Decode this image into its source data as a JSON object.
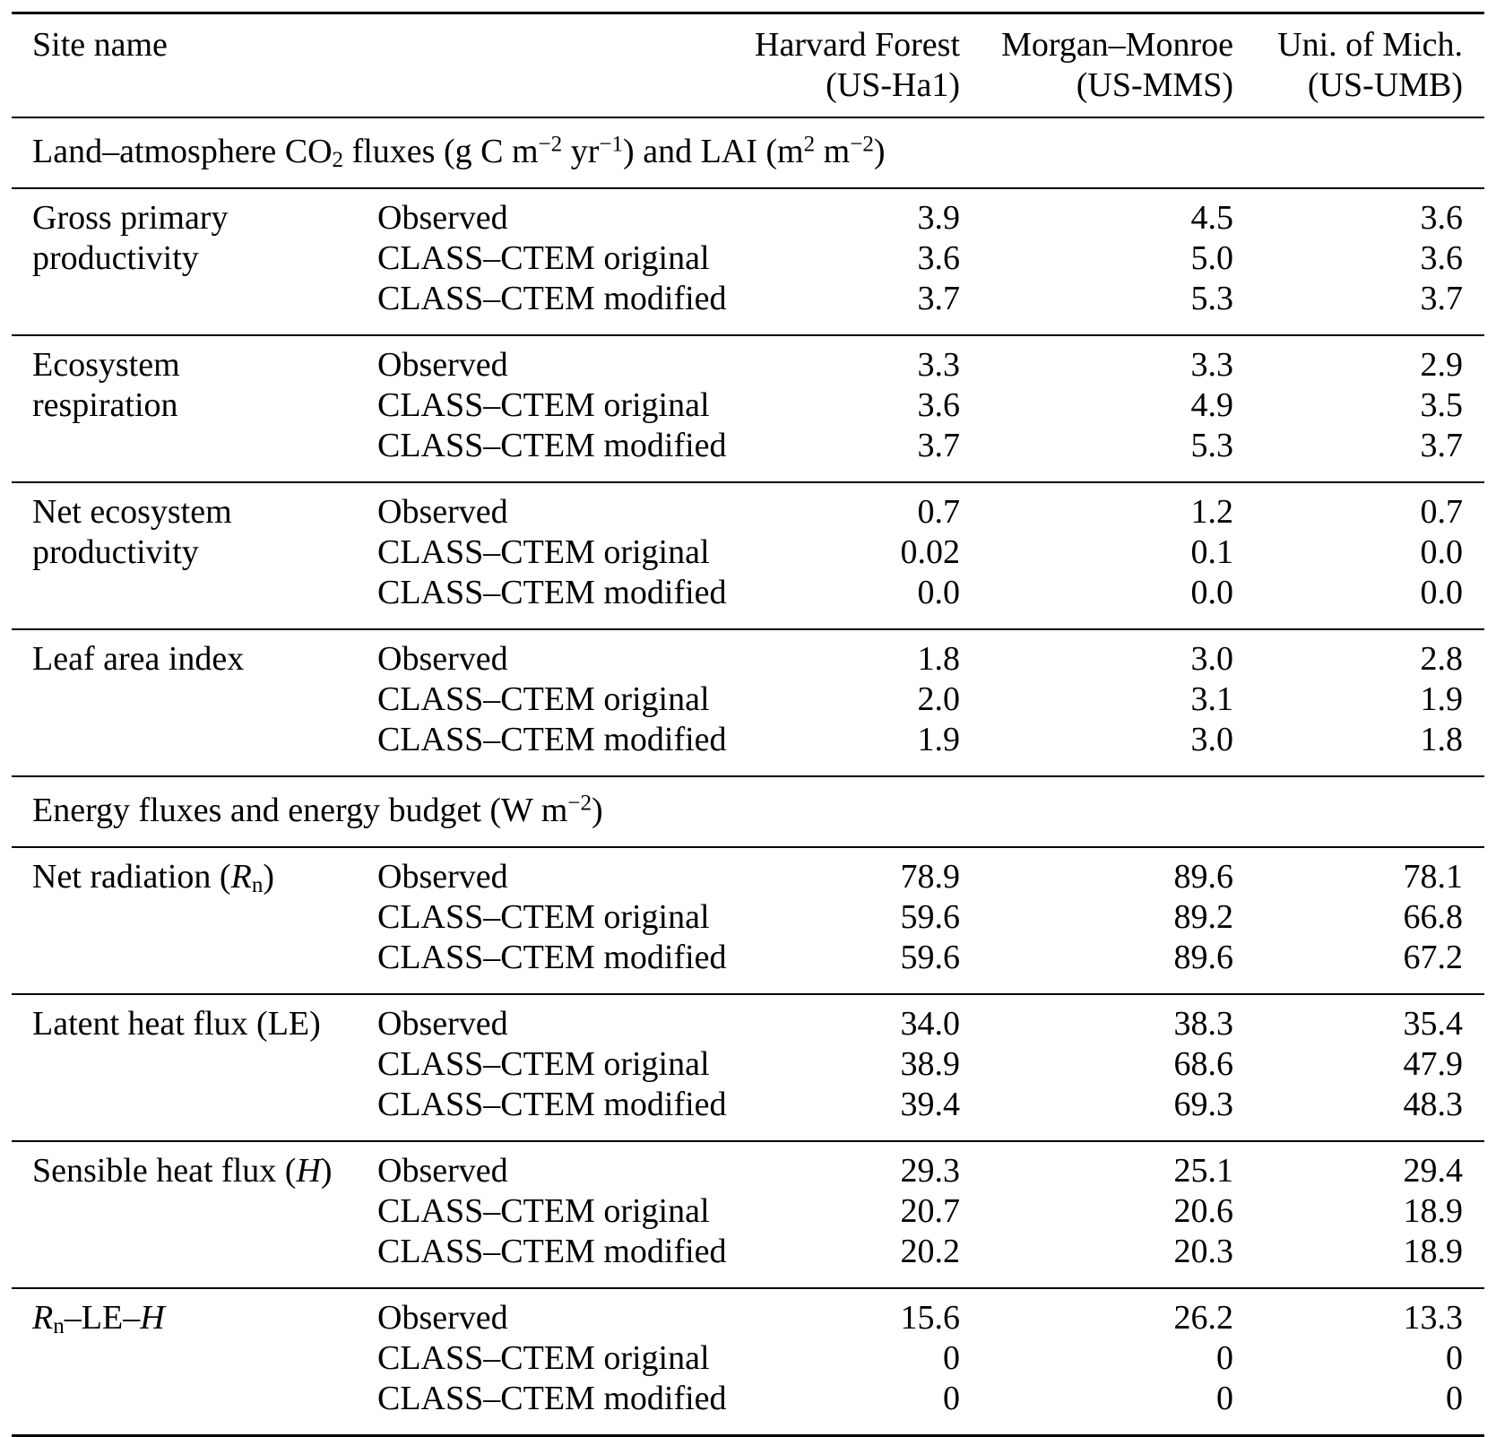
{
  "table": {
    "header": {
      "site_name": "Site name",
      "columns": [
        {
          "name": "Harvard Forest",
          "code": "(US-Ha1)"
        },
        {
          "name": "Morgan–Monroe",
          "code": "(US-MMS)"
        },
        {
          "name": "Uni. of Mich.",
          "code": "(US-UMB)"
        }
      ]
    },
    "blocks": [
      {
        "type": "section",
        "segments": [
          {
            "t": "Land–atmosphere CO"
          },
          {
            "t": "2",
            "s": "sub"
          },
          {
            "t": " fluxes (g C m"
          },
          {
            "t": "−2",
            "s": "sup"
          },
          {
            "t": " yr"
          },
          {
            "t": "−1",
            "s": "sup"
          },
          {
            "t": ") and LAI (m"
          },
          {
            "t": "2",
            "s": "sup"
          },
          {
            "t": " m"
          },
          {
            "t": "−2",
            "s": "sup"
          },
          {
            "t": ")"
          }
        ]
      },
      {
        "type": "group",
        "label_lines": [
          [
            {
              "t": "Gross primary"
            }
          ],
          [
            {
              "t": "productivity"
            }
          ]
        ],
        "rows": [
          {
            "label": "Observed",
            "values": [
              "3.9",
              "4.5",
              "3.6"
            ]
          },
          {
            "label": "CLASS–CTEM original",
            "values": [
              "3.6",
              "5.0",
              "3.6"
            ]
          },
          {
            "label": "CLASS–CTEM modified",
            "values": [
              "3.7",
              "5.3",
              "3.7"
            ]
          }
        ]
      },
      {
        "type": "group",
        "label_lines": [
          [
            {
              "t": "Ecosystem"
            }
          ],
          [
            {
              "t": "respiration"
            }
          ]
        ],
        "rows": [
          {
            "label": "Observed",
            "values": [
              "3.3",
              "3.3",
              "2.9"
            ]
          },
          {
            "label": "CLASS–CTEM original",
            "values": [
              "3.6",
              "4.9",
              "3.5"
            ]
          },
          {
            "label": "CLASS–CTEM modified",
            "values": [
              "3.7",
              "5.3",
              "3.7"
            ]
          }
        ]
      },
      {
        "type": "group",
        "label_lines": [
          [
            {
              "t": "Net ecosystem"
            }
          ],
          [
            {
              "t": "productivity"
            }
          ]
        ],
        "rows": [
          {
            "label": "Observed",
            "values": [
              "0.7",
              "1.2",
              "0.7"
            ]
          },
          {
            "label": "CLASS–CTEM original",
            "values": [
              "0.02",
              "0.1",
              "0.0"
            ]
          },
          {
            "label": "CLASS–CTEM modified",
            "values": [
              "0.0",
              "0.0",
              "0.0"
            ]
          }
        ]
      },
      {
        "type": "group",
        "label_lines": [
          [
            {
              "t": "Leaf area index"
            }
          ]
        ],
        "rows": [
          {
            "label": "Observed",
            "values": [
              "1.8",
              "3.0",
              "2.8"
            ]
          },
          {
            "label": "CLASS–CTEM original",
            "values": [
              "2.0",
              "3.1",
              "1.9"
            ]
          },
          {
            "label": "CLASS–CTEM modified",
            "values": [
              "1.9",
              "3.0",
              "1.8"
            ]
          }
        ]
      },
      {
        "type": "section",
        "segments": [
          {
            "t": "Energy fluxes and energy budget (W m"
          },
          {
            "t": "−2",
            "s": "sup"
          },
          {
            "t": ")"
          }
        ]
      },
      {
        "type": "group",
        "label_lines": [
          [
            {
              "t": "Net radiation ("
            },
            {
              "t": "R",
              "s": "i"
            },
            {
              "t": "n",
              "s": "sub"
            },
            {
              "t": ")"
            }
          ]
        ],
        "rows": [
          {
            "label": "Observed",
            "values": [
              "78.9",
              "89.6",
              "78.1"
            ]
          },
          {
            "label": "CLASS–CTEM original",
            "values": [
              "59.6",
              "89.2",
              "66.8"
            ]
          },
          {
            "label": "CLASS–CTEM modified",
            "values": [
              "59.6",
              "89.6",
              "67.2"
            ]
          }
        ]
      },
      {
        "type": "group",
        "label_lines": [
          [
            {
              "t": "Latent heat flux (LE)"
            }
          ]
        ],
        "rows": [
          {
            "label": "Observed",
            "values": [
              "34.0",
              "38.3",
              "35.4"
            ]
          },
          {
            "label": "CLASS–CTEM original",
            "values": [
              "38.9",
              "68.6",
              "47.9"
            ]
          },
          {
            "label": "CLASS–CTEM modified",
            "values": [
              "39.4",
              "69.3",
              "48.3"
            ]
          }
        ]
      },
      {
        "type": "group",
        "label_lines": [
          [
            {
              "t": "Sensible heat flux ("
            },
            {
              "t": "H",
              "s": "i"
            },
            {
              "t": ")"
            }
          ]
        ],
        "rows": [
          {
            "label": "Observed",
            "values": [
              "29.3",
              "25.1",
              "29.4"
            ]
          },
          {
            "label": "CLASS–CTEM original",
            "values": [
              "20.7",
              "20.6",
              "18.9"
            ]
          },
          {
            "label": "CLASS–CTEM modified",
            "values": [
              "20.2",
              "20.3",
              "18.9"
            ]
          }
        ]
      },
      {
        "type": "group",
        "label_lines": [
          [
            {
              "t": "R",
              "s": "i"
            },
            {
              "t": "n",
              "s": "sub"
            },
            {
              "t": "–LE–"
            },
            {
              "t": "H",
              "s": "i"
            }
          ]
        ],
        "rows": [
          {
            "label": "Observed",
            "values": [
              "15.6",
              "26.2",
              "13.3"
            ]
          },
          {
            "label": "CLASS–CTEM original",
            "values": [
              "0",
              "0",
              "0"
            ]
          },
          {
            "label": "CLASS–CTEM modified",
            "values": [
              "0",
              "0",
              "0"
            ]
          }
        ]
      }
    ]
  }
}
